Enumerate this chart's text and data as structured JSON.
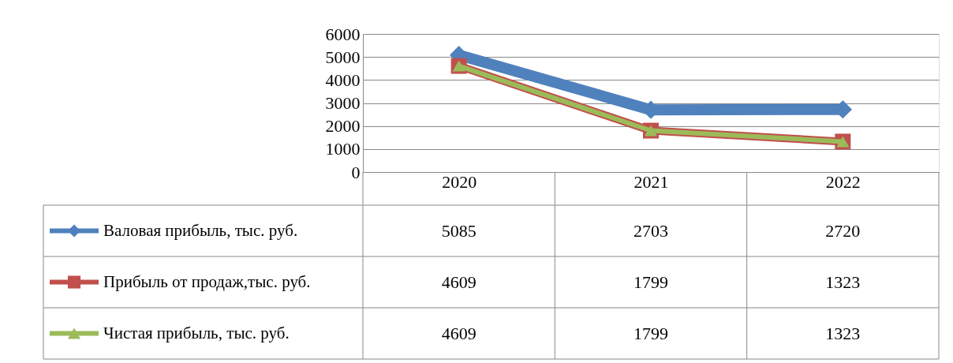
{
  "chart_data": {
    "type": "line",
    "categories": [
      "2020",
      "2021",
      "2022"
    ],
    "series": [
      {
        "name": "Валовая прибыль, тыс. руб.",
        "color": "#4f81bd",
        "marker": "diamond",
        "values": [
          5085,
          2703,
          2720
        ]
      },
      {
        "name": "Прибыль от продаж,тыс. руб.",
        "color": "#c0504d",
        "marker": "square",
        "values": [
          4609,
          1799,
          1323
        ]
      },
      {
        "name": "Чистая прибыль, тыс. руб.",
        "color": "#9bbb59",
        "marker": "triangle",
        "values": [
          4609,
          1799,
          1323
        ]
      }
    ],
    "ylim": [
      0,
      6000
    ],
    "yticks": [
      0,
      1000,
      2000,
      3000,
      4000,
      5000,
      6000
    ],
    "grid": "y",
    "legend": "bottom",
    "data_labels": true
  }
}
